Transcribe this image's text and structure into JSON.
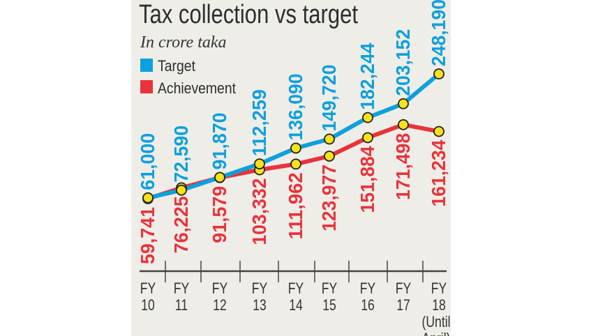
{
  "chart_data": {
    "type": "line",
    "title": "Tax collection vs target",
    "subtitle": "In crore taka",
    "categories": [
      {
        "line1": "FY",
        "line2": "10"
      },
      {
        "line1": "FY",
        "line2": "11"
      },
      {
        "line1": "FY",
        "line2": "12"
      },
      {
        "line1": "FY",
        "line2": "13"
      },
      {
        "line1": "FY",
        "line2": "14"
      },
      {
        "line1": "FY",
        "line2": "15"
      },
      {
        "line1": "FY",
        "line2": "16"
      },
      {
        "line1": "FY",
        "line2": "17"
      },
      {
        "line1": "FY",
        "line2": "18",
        "line3": "(Until",
        "line4": "April)"
      }
    ],
    "series": [
      {
        "name": "Target",
        "color": "#0ea0dc",
        "values": [
          61000,
          72590,
          91870,
          112259,
          136090,
          149720,
          182244,
          203152,
          248190
        ],
        "labels": [
          "61,000",
          "72,590",
          "91,870",
          "112,259",
          "136,090",
          "149,720",
          "182,244",
          "203,152",
          "248,190"
        ]
      },
      {
        "name": "Achievement",
        "color": "#e8333b",
        "values": [
          59741,
          76225,
          91579,
          103332,
          111962,
          123977,
          151884,
          171498,
          161234
        ],
        "labels": [
          "59,741",
          "76,225",
          "91,579",
          "103,332",
          "111,962",
          "123,977",
          "151,884",
          "171,498",
          "161,234"
        ]
      }
    ],
    "legend": "top-left",
    "grid": false,
    "marker_color": "#f7e21b",
    "background": "#eeede8"
  }
}
